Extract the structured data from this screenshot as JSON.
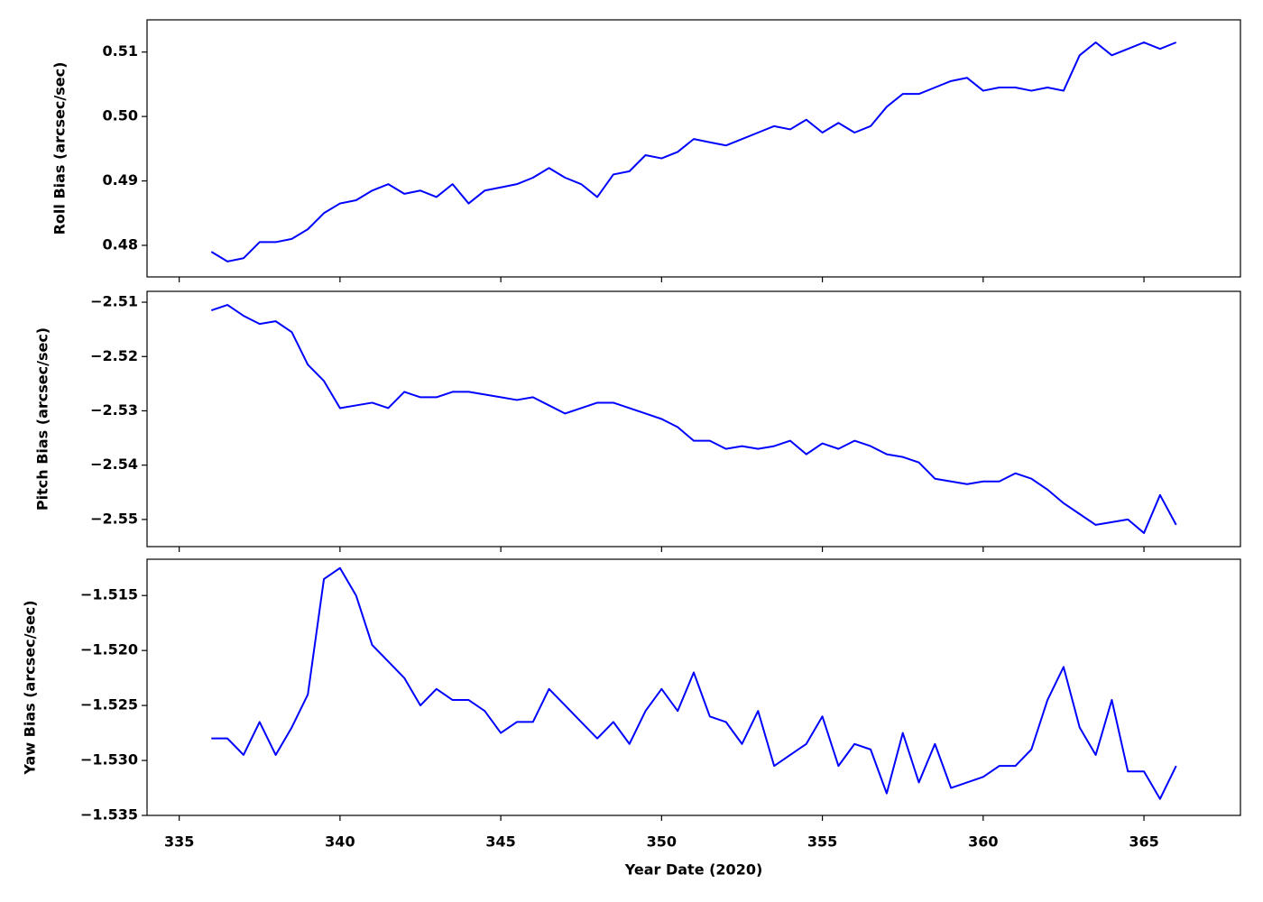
{
  "chart_data": [
    {
      "type": "line",
      "y_label": "Roll Bias (arcsec/sec)",
      "x": [
        336,
        336.5,
        337,
        337.5,
        338,
        338.5,
        339,
        339.5,
        340,
        340.5,
        341,
        341.5,
        342,
        342.5,
        343,
        343.5,
        344,
        344.5,
        345,
        345.5,
        346,
        346.5,
        347,
        347.5,
        348,
        348.5,
        349,
        349.5,
        350,
        350.5,
        351,
        351.5,
        352,
        352.5,
        353,
        353.5,
        354,
        354.5,
        355,
        355.5,
        356,
        356.5,
        357,
        357.5,
        358,
        358.5,
        359,
        359.5,
        360,
        360.5,
        361,
        361.5,
        362,
        362.5,
        363,
        363.5,
        364,
        364.5,
        365,
        365.5,
        366
      ],
      "series": [
        {
          "color": "#0000ff",
          "values": [
            0.479,
            0.4775,
            0.478,
            0.4805,
            0.4805,
            0.481,
            0.4825,
            0.485,
            0.4865,
            0.487,
            0.4885,
            0.4895,
            0.488,
            0.4885,
            0.4875,
            0.4895,
            0.4865,
            0.4885,
            0.489,
            0.4895,
            0.4905,
            0.492,
            0.4905,
            0.4895,
            0.4875,
            0.491,
            0.4915,
            0.494,
            0.4935,
            0.4945,
            0.4965,
            0.496,
            0.4955,
            0.4965,
            0.4975,
            0.4985,
            0.498,
            0.4995,
            0.4975,
            0.499,
            0.4975,
            0.4985,
            0.5015,
            0.5035,
            0.5035,
            0.5045,
            0.5055,
            0.506,
            0.504,
            0.5045,
            0.5045,
            0.504,
            0.5045,
            0.504,
            0.5095,
            0.5115,
            0.5095,
            0.5105,
            0.5115,
            0.5105,
            0.5115
          ]
        }
      ],
      "xlim": [
        334,
        368
      ],
      "xticks": [
        335,
        340,
        345,
        350,
        355,
        360,
        365
      ],
      "ylim": [
        0.4751,
        0.515
      ],
      "yticks": [
        0.48,
        0.49,
        {
          "value": 0.5,
          "label": "0.50"
        },
        0.51
      ]
    },
    {
      "type": "line",
      "y_label": "Pitch Bias (arcsec/sec)",
      "x": [
        336,
        336.5,
        337,
        337.5,
        338,
        338.5,
        339,
        339.5,
        340,
        340.5,
        341,
        341.5,
        342,
        342.5,
        343,
        343.5,
        344,
        344.5,
        345,
        345.5,
        346,
        346.5,
        347,
        347.5,
        348,
        348.5,
        349,
        349.5,
        350,
        350.5,
        351,
        351.5,
        352,
        352.5,
        353,
        353.5,
        354,
        354.5,
        355,
        355.5,
        356,
        356.5,
        357,
        357.5,
        358,
        358.5,
        359,
        359.5,
        360,
        360.5,
        361,
        361.5,
        362,
        362.5,
        363,
        363.5,
        364,
        364.5,
        365,
        365.5,
        366
      ],
      "series": [
        {
          "color": "#0000ff",
          "values": [
            -2.5115,
            -2.5105,
            -2.5125,
            -2.514,
            -2.5135,
            -2.5155,
            -2.5215,
            -2.5245,
            -2.5295,
            -2.529,
            -2.5285,
            -2.5295,
            -2.5265,
            -2.5275,
            -2.5275,
            -2.5265,
            -2.5265,
            -2.527,
            -2.5275,
            -2.528,
            -2.5275,
            -2.529,
            -2.5305,
            -2.5295,
            -2.5285,
            -2.5285,
            -2.5295,
            -2.5305,
            -2.5315,
            -2.533,
            -2.5355,
            -2.5355,
            -2.537,
            -2.5365,
            -2.537,
            -2.5365,
            -2.5355,
            -2.538,
            -2.536,
            -2.537,
            -2.5355,
            -2.5365,
            -2.538,
            -2.5385,
            -2.5395,
            -2.5425,
            -2.543,
            -2.5435,
            -2.543,
            -2.543,
            -2.5415,
            -2.5425,
            -2.5445,
            -2.547,
            -2.549,
            -2.551,
            -2.5505,
            -2.55,
            -2.5525,
            -2.5455,
            -2.551
          ]
        }
      ],
      "xlim": [
        334,
        368
      ],
      "xticks": [
        335,
        340,
        345,
        350,
        355,
        360,
        365
      ],
      "ylim": [
        -2.555,
        -2.508
      ],
      "yticks": [
        {
          "value": -2.55,
          "label": "−2.55"
        },
        {
          "value": -2.54,
          "label": "−2.54"
        },
        {
          "value": -2.53,
          "label": "−2.53"
        },
        {
          "value": -2.52,
          "label": "−2.52"
        },
        {
          "value": -2.51,
          "label": "−2.51"
        }
      ]
    },
    {
      "type": "line",
      "y_label": "Yaw Bias (arcsec/sec)",
      "x_label": "Year Date (2020)",
      "x": [
        336,
        336.5,
        337,
        337.5,
        338,
        338.5,
        339,
        339.5,
        340,
        340.5,
        341,
        341.5,
        342,
        342.5,
        343,
        343.5,
        344,
        344.5,
        345,
        345.5,
        346,
        346.5,
        347,
        347.5,
        348,
        348.5,
        349,
        349.5,
        350,
        350.5,
        351,
        351.5,
        352,
        352.5,
        353,
        353.5,
        354,
        354.5,
        355,
        355.5,
        356,
        356.5,
        357,
        357.5,
        358,
        358.5,
        359,
        359.5,
        360,
        360.5,
        361,
        361.5,
        362,
        362.5,
        363,
        363.5,
        364,
        364.5,
        365,
        365.5,
        366
      ],
      "series": [
        {
          "color": "#0000ff",
          "values": [
            -1.528,
            -1.528,
            -1.5295,
            -1.5265,
            -1.5295,
            -1.527,
            -1.524,
            -1.5135,
            -1.5125,
            -1.515,
            -1.5195,
            -1.521,
            -1.5225,
            -1.525,
            -1.5235,
            -1.5245,
            -1.5245,
            -1.5255,
            -1.5275,
            -1.5265,
            -1.5265,
            -1.5235,
            -1.525,
            -1.5265,
            -1.528,
            -1.5265,
            -1.5285,
            -1.5255,
            -1.5235,
            -1.5255,
            -1.522,
            -1.526,
            -1.5265,
            -1.5285,
            -1.5255,
            -1.5305,
            -1.5295,
            -1.5285,
            -1.526,
            -1.5305,
            -1.5285,
            -1.529,
            -1.533,
            -1.5275,
            -1.532,
            -1.5285,
            -1.5325,
            -1.532,
            -1.5315,
            -1.5305,
            -1.5305,
            -1.529,
            -1.5245,
            -1.5215,
            -1.527,
            -1.5295,
            -1.5245,
            -1.531,
            -1.531,
            -1.5335,
            -1.5305
          ]
        }
      ],
      "xlim": [
        334,
        368
      ],
      "xticks": [
        335,
        340,
        345,
        350,
        355,
        360,
        365
      ],
      "ylim": [
        -1.535,
        -1.5117
      ],
      "yticks": [
        {
          "value": -1.535,
          "label": "−1.535"
        },
        {
          "value": -1.53,
          "label": "−1.530"
        },
        {
          "value": -1.525,
          "label": "−1.525"
        },
        {
          "value": -1.52,
          "label": "−1.520"
        },
        {
          "value": -1.515,
          "label": "−1.515"
        }
      ]
    }
  ]
}
